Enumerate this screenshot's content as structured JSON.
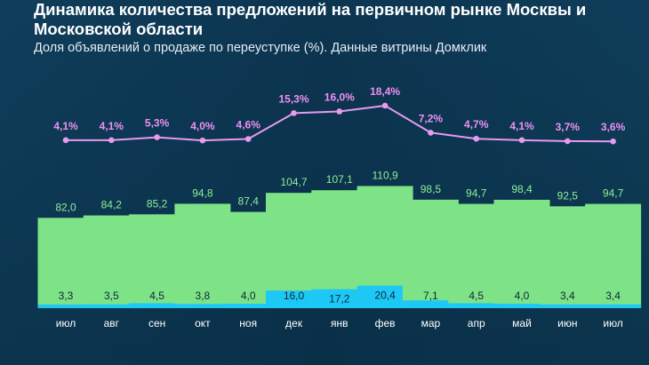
{
  "title": "Динамика количества предложений на первичном рынке Москвы и Московской области",
  "subtitle": "Доля объявлений о продаже по переуступке (%). Данные витрины Домклик",
  "colors": {
    "background": "#0e3a55",
    "total_bar": "#7ee387",
    "resale_bar": "#1ec8f5",
    "share_line": "#e79af0",
    "total_label": "#8ef09a",
    "share_label": "#ee90f5",
    "month_label": "#ffffff"
  },
  "chart_data": {
    "type": "bar",
    "categories": [
      "июл",
      "авг",
      "сен",
      "окт",
      "ноя",
      "дек",
      "янв",
      "фев",
      "мар",
      "апр",
      "май",
      "июн",
      "июл"
    ],
    "series": [
      {
        "values": [
          82.0,
          84.2,
          85.2,
          94.8,
          87.4,
          104.7,
          107.1,
          110.9,
          98.5,
          94.7,
          98.4,
          92.5,
          94.7
        ],
        "labels": [
          "82,0",
          "84,2",
          "85,2",
          "94,8",
          "87,4",
          "104,7",
          "107,1",
          "110,9",
          "98,5",
          "94,7",
          "98,4",
          "92,5",
          "94,7"
        ]
      },
      {
        "values": [
          3.3,
          3.5,
          4.5,
          3.8,
          4.0,
          16.0,
          17.2,
          20.4,
          7.1,
          4.5,
          4.0,
          3.4,
          3.4
        ],
        "labels": [
          "3,3",
          "3,5",
          "4,5",
          "3,8",
          "4,0",
          "16,0",
          "17,2",
          "20,4",
          "7,1",
          "4,5",
          "4,0",
          "3,4",
          "3,4"
        ]
      },
      {
        "type": "line",
        "values": [
          4.1,
          4.1,
          5.3,
          4.0,
          4.6,
          15.3,
          16.0,
          18.4,
          7.2,
          4.7,
          4.1,
          3.7,
          3.6
        ],
        "labels": [
          "4,1%",
          "4,1%",
          "5,3%",
          "4,0%",
          "4,6%",
          "15,3%",
          "16,0%",
          "18,4%",
          "7,2%",
          "4,7%",
          "4,1%",
          "3,7%",
          "3,6%"
        ]
      }
    ]
  }
}
